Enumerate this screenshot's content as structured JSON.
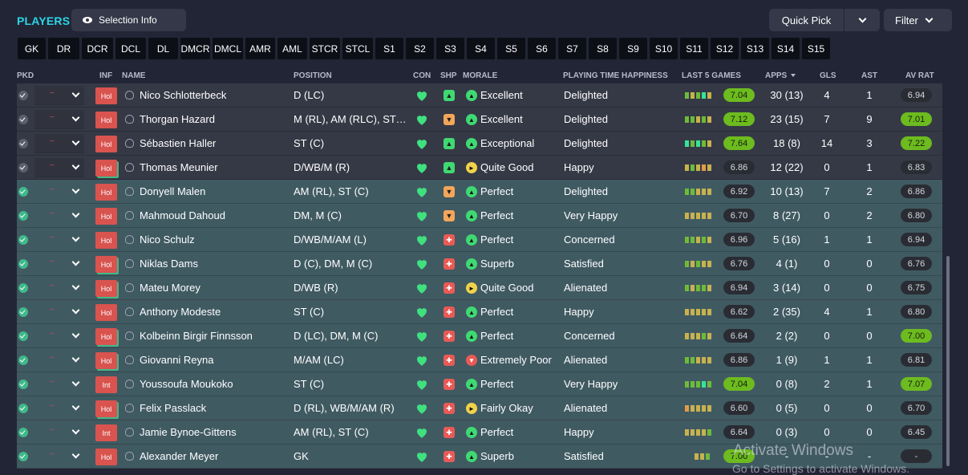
{
  "header": {
    "title": "PLAYERS",
    "selection_info": "Selection Info",
    "quick_pick": "Quick Pick",
    "filter": "Filter"
  },
  "position_filters": [
    "GK",
    "DR",
    "DCR",
    "DCL",
    "DL",
    "DMCR",
    "DMCL",
    "AMR",
    "AML",
    "STCR",
    "STCL",
    "S1",
    "S2",
    "S3",
    "S4",
    "S5",
    "S6",
    "S7",
    "S8",
    "S9",
    "S10",
    "S11",
    "S12",
    "S13",
    "S14",
    "S15"
  ],
  "columns": {
    "pkd": "PKD",
    "inf": "INF",
    "name": "NAME",
    "position": "POSITION",
    "con": "CON",
    "shp": "SHP",
    "morale": "MORALE",
    "playing_time": "PLAYING TIME HAPPINESS",
    "last5": "LAST 5 GAMES",
    "apps": "APPS",
    "gls": "GLS",
    "ast": "AST",
    "av_rat": "AV RAT"
  },
  "players": [
    {
      "name": "Nico Schlotterbeck",
      "position": "D (LC)",
      "morale": "Excellent",
      "playing_time": "Delighted",
      "last5": "7.04",
      "apps": "30 (13)",
      "gls": "4",
      "ast": "1",
      "av_rat": "6.94",
      "inf": "Hol"
    },
    {
      "name": "Thorgan Hazard",
      "position": "M (RL), AM (RLC), ST (C)",
      "morale": "Excellent",
      "playing_time": "Delighted",
      "last5": "7.12",
      "apps": "23 (15)",
      "gls": "7",
      "ast": "9",
      "av_rat": "7.01",
      "inf": "Hol"
    },
    {
      "name": "Sébastien Haller",
      "position": "ST (C)",
      "morale": "Exceptional",
      "playing_time": "Delighted",
      "last5": "7.64",
      "apps": "18 (8)",
      "gls": "14",
      "ast": "3",
      "av_rat": "7.22",
      "inf": "Hol"
    },
    {
      "name": "Thomas Meunier",
      "position": "D/WB/M (R)",
      "morale": "Quite Good",
      "playing_time": "Happy",
      "last5": "6.86",
      "apps": "12 (22)",
      "gls": "0",
      "ast": "1",
      "av_rat": "6.83",
      "inf": "Hol"
    },
    {
      "name": "Donyell Malen",
      "position": "AM (RL), ST (C)",
      "morale": "Perfect",
      "playing_time": "Delighted",
      "last5": "6.92",
      "apps": "10 (13)",
      "gls": "7",
      "ast": "2",
      "av_rat": "6.86",
      "inf": "Hol"
    },
    {
      "name": "Mahmoud Dahoud",
      "position": "DM, M (C)",
      "morale": "Perfect",
      "playing_time": "Very Happy",
      "last5": "6.70",
      "apps": "8 (27)",
      "gls": "0",
      "ast": "2",
      "av_rat": "6.80",
      "inf": "Hol"
    },
    {
      "name": "Nico Schulz",
      "position": "D/WB/M/AM (L)",
      "morale": "Perfect",
      "playing_time": "Concerned",
      "last5": "6.96",
      "apps": "5 (16)",
      "gls": "1",
      "ast": "1",
      "av_rat": "6.94",
      "inf": "Hol"
    },
    {
      "name": "Niklas Dams",
      "position": "D (C), DM, M (C)",
      "morale": "Superb",
      "playing_time": "Satisfied",
      "last5": "6.76",
      "apps": "4 (1)",
      "gls": "0",
      "ast": "0",
      "av_rat": "6.76",
      "inf": "Hol"
    },
    {
      "name": "Mateu Morey",
      "position": "D/WB (R)",
      "morale": "Quite Good",
      "playing_time": "Alienated",
      "last5": "6.94",
      "apps": "3 (14)",
      "gls": "0",
      "ast": "0",
      "av_rat": "6.75",
      "inf": "Hol"
    },
    {
      "name": "Anthony Modeste",
      "position": "ST (C)",
      "morale": "Perfect",
      "playing_time": "Happy",
      "last5": "6.62",
      "apps": "2 (35)",
      "gls": "4",
      "ast": "1",
      "av_rat": "6.80",
      "inf": "Hol"
    },
    {
      "name": "Kolbeinn Birgir Finnsson",
      "position": "D (LC), DM, M (C)",
      "morale": "Perfect",
      "playing_time": "Concerned",
      "last5": "6.64",
      "apps": "2 (2)",
      "gls": "0",
      "ast": "0",
      "av_rat": "7.00",
      "inf": "Hol"
    },
    {
      "name": "Giovanni Reyna",
      "position": "M/AM (LC)",
      "morale": "Extremely Poor",
      "playing_time": "Alienated",
      "last5": "6.86",
      "apps": "1 (9)",
      "gls": "1",
      "ast": "1",
      "av_rat": "6.81",
      "inf": "Hol"
    },
    {
      "name": "Youssoufa Moukoko",
      "position": "ST (C)",
      "morale": "Perfect",
      "playing_time": "Very Happy",
      "last5": "7.04",
      "apps": "0 (8)",
      "gls": "2",
      "ast": "1",
      "av_rat": "7.07",
      "inf": "Int"
    },
    {
      "name": "Felix Passlack",
      "position": "D (RL), WB/M/AM (R)",
      "morale": "Fairly Okay",
      "playing_time": "Alienated",
      "last5": "6.60",
      "apps": "0 (5)",
      "gls": "0",
      "ast": "0",
      "av_rat": "6.70",
      "inf": "Hol"
    },
    {
      "name": "Jamie Bynoe-Gittens",
      "position": "AM (RL), ST (C)",
      "morale": "Perfect",
      "playing_time": "Happy",
      "last5": "6.64",
      "apps": "0 (3)",
      "gls": "0",
      "ast": "0",
      "av_rat": "6.45",
      "inf": "Int"
    },
    {
      "name": "Alexander Meyer",
      "position": "GK",
      "morale": "Superb",
      "playing_time": "Satisfied",
      "last5": "7.00",
      "apps": "-",
      "gls": "-",
      "ast": "-",
      "av_rat": "-",
      "inf": "Hol"
    }
  ],
  "watermark": {
    "line1": "Activate Windows",
    "line2": "Go to Settings to activate Windows."
  }
}
